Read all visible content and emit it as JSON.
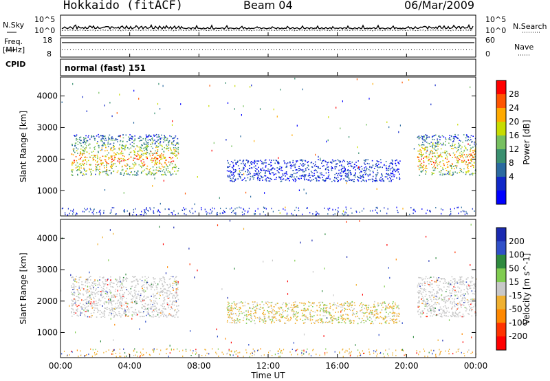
{
  "header": {
    "radar": "Hokkaido (fitACF)",
    "beam": "Beam 04",
    "date": "06/Mar/2009"
  },
  "top_panels": {
    "nsky_label": "N.Sky",
    "nsky_ticks": [
      "10^5",
      "10^0"
    ],
    "nsearch_label": "N.Search",
    "nsearch_ticks": [
      "10^5",
      "10^0"
    ],
    "freq_label": "Freq.",
    "freq_unit": "[MHz]",
    "freq_ticks": [
      "18",
      "8"
    ],
    "nave_label": "Nave",
    "nave_ticks": [
      "60",
      "0"
    ],
    "cpid_label": "CPID",
    "cpid_value": "normal (fast) 151"
  },
  "chart_data": [
    {
      "type": "heatmap",
      "name": "power",
      "ylabel": "Slant Range [km]",
      "yticks": [
        "4000",
        "3000",
        "2000",
        "1000"
      ],
      "ylim": [
        200,
        4600
      ],
      "xlim": [
        0,
        24
      ],
      "colorbar": {
        "label": "Power [dB]",
        "ticks": [
          "28",
          "24",
          "20",
          "16",
          "12",
          "8",
          "4"
        ],
        "colors": [
          "#ff0000",
          "#ff5500",
          "#ffaa00",
          "#c8dc00",
          "#77c060",
          "#3a9070",
          "#2a6aa0",
          "#1028c8",
          "#0000ff"
        ]
      },
      "regions": [
        {
          "t0": 0.6,
          "t1": 6.8,
          "r0": 1500,
          "r1": 2800,
          "level": "high"
        },
        {
          "t0": 9.6,
          "t1": 19.6,
          "r0": 1300,
          "r1": 2000,
          "level": "low"
        },
        {
          "t0": 20.6,
          "t1": 24.0,
          "r0": 1500,
          "r1": 2800,
          "level": "high"
        }
      ]
    },
    {
      "type": "heatmap",
      "name": "velocity",
      "ylabel": "Slant Range [km]",
      "yticks": [
        "4000",
        "3000",
        "2000",
        "1000"
      ],
      "ylim": [
        200,
        4600
      ],
      "xlim": [
        0,
        24
      ],
      "xticks": [
        "00:00",
        "04:00",
        "08:00",
        "12:00",
        "16:00",
        "20:00",
        "00:00"
      ],
      "xlabel": "Time UT",
      "colorbar": {
        "label": "Velocity [m s^-1]",
        "ticks": [
          "200",
          "100",
          "50",
          "15",
          "-15",
          "-50",
          "-100",
          "-200"
        ],
        "colors": [
          "#1a2ab0",
          "#3050c8",
          "#2e8a3e",
          "#80cc50",
          "#c8c8c8",
          "#f0b030",
          "#ff8800",
          "#ff3300",
          "#ff0000"
        ]
      },
      "regions": [
        {
          "t0": 0.6,
          "t1": 6.8,
          "r0": 1500,
          "r1": 2800,
          "level": "grey"
        },
        {
          "t0": 9.6,
          "t1": 19.6,
          "r0": 1300,
          "r1": 2000,
          "level": "mixed"
        },
        {
          "t0": 20.6,
          "t1": 24.0,
          "r0": 1500,
          "r1": 2800,
          "level": "grey"
        }
      ]
    }
  ]
}
